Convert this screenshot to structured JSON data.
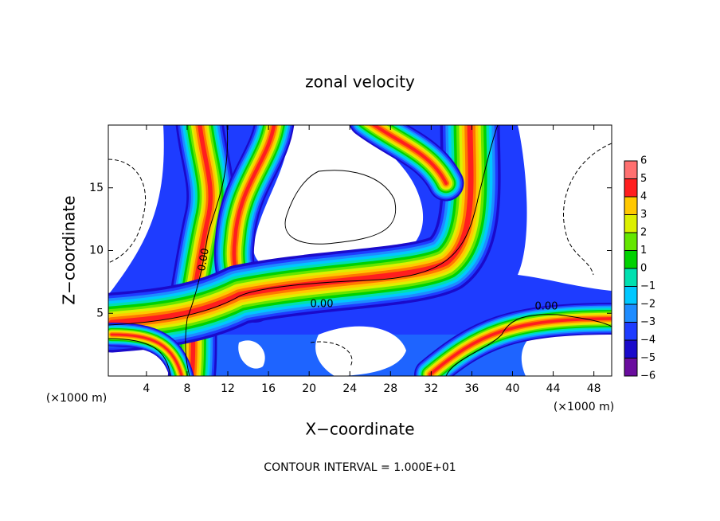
{
  "chart_data": {
    "type": "contour",
    "title": "zonal velocity",
    "xlabel": "X−coordinate",
    "ylabel": "Z−coordinate",
    "xunit": "(×1000 m)",
    "xunit_right": "(×1000 m)",
    "footer": "CONTOUR INTERVAL = 1.000E+01",
    "contour_labels": [
      "0.00",
      "0.00",
      "0.00"
    ],
    "xlim": [
      0.25,
      49.75
    ],
    "ylim": [
      0,
      20
    ],
    "xticks": [
      4,
      8,
      12,
      16,
      20,
      24,
      28,
      32,
      36,
      40,
      44,
      48
    ],
    "yticks": [
      5,
      10,
      15
    ],
    "colorbar": {
      "ticks": [
        {
          "value": -6,
          "label": "−6"
        },
        {
          "value": -5,
          "label": "−5"
        },
        {
          "value": -4,
          "label": "−4"
        },
        {
          "value": -3,
          "label": "−3"
        },
        {
          "value": -2,
          "label": "−2"
        },
        {
          "value": -1,
          "label": "−1"
        },
        0,
        1,
        2,
        3,
        4,
        5,
        6
      ],
      "colors": [
        "#6a0d9e",
        "#1a0acb",
        "#1e3cff",
        "#1e8cff",
        "#00c8ff",
        "#00e0b0",
        "#00d200",
        "#64e600",
        "#dcf000",
        "#ffc800",
        "#ff1e1e",
        "#ff7070"
      ]
    }
  }
}
